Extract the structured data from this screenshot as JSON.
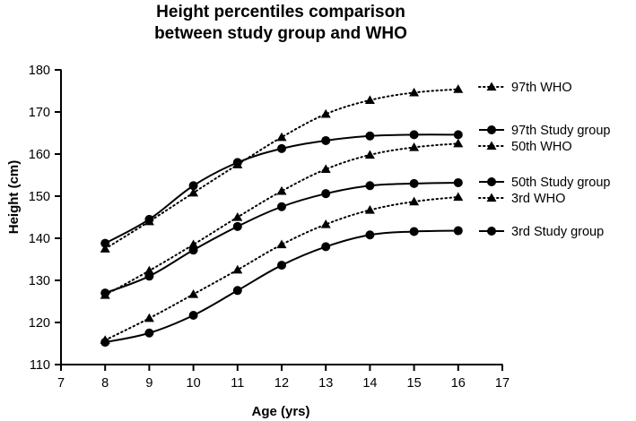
{
  "chart_data": {
    "type": "line",
    "title_lines": [
      "Height percentiles comparison",
      "between study group and WHO"
    ],
    "xlabel": "Age (yrs)",
    "ylabel": "Height (cm)",
    "xlim": [
      7,
      17
    ],
    "ylim": [
      110,
      180
    ],
    "xticks": [
      7,
      8,
      9,
      10,
      11,
      12,
      13,
      14,
      15,
      16,
      17
    ],
    "yticks": [
      110,
      120,
      130,
      140,
      150,
      160,
      170,
      180
    ],
    "grid": false,
    "legend_position": "right",
    "x": [
      8,
      9,
      10,
      11,
      12,
      13,
      14,
      15,
      16
    ],
    "series": [
      {
        "name": "97th WHO",
        "style": "dotted",
        "marker": "triangle",
        "values": [
          137.5,
          144,
          150.8,
          157.5,
          164,
          169.5,
          172.8,
          174.6,
          175.4
        ]
      },
      {
        "name": "97th Study group",
        "style": "solid",
        "marker": "circle",
        "values": [
          138.8,
          144.5,
          152.5,
          158,
          161.3,
          163.2,
          164.3,
          164.6,
          164.6
        ]
      },
      {
        "name": "50th WHO",
        "style": "dotted",
        "marker": "triangle",
        "values": [
          126.5,
          132.3,
          138.5,
          145,
          151.2,
          156.4,
          159.8,
          161.6,
          162.5
        ]
      },
      {
        "name": "50th Study group",
        "style": "solid",
        "marker": "circle",
        "values": [
          127,
          131,
          137.2,
          142.8,
          147.5,
          150.6,
          152.5,
          153,
          153.2
        ]
      },
      {
        "name": "3rd WHO",
        "style": "dotted",
        "marker": "triangle",
        "values": [
          115.8,
          121,
          126.7,
          132.5,
          138.5,
          143.3,
          146.7,
          148.7,
          149.8
        ]
      },
      {
        "name": "3rd Study group",
        "style": "solid",
        "marker": "circle",
        "values": [
          115.3,
          117.5,
          121.7,
          127.6,
          133.6,
          138,
          140.8,
          141.6,
          141.8
        ]
      }
    ],
    "color": "#000000"
  }
}
